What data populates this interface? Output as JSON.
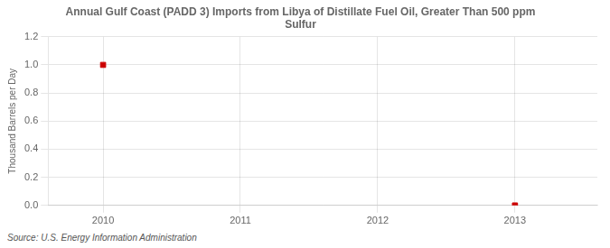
{
  "chart_data": {
    "type": "scatter",
    "title": "Annual Gulf Coast (PADD 3) Imports from Libya of Distillate Fuel Oil, Greater Than 500 ppm\nSulfur",
    "ylabel": "Thousand Barrels per Day",
    "annotations": [
      "Source: U.S. Energy Information Administration"
    ],
    "x": [
      2010,
      2013
    ],
    "values": [
      1.0,
      0.0
    ],
    "color": "#cc0000",
    "marker": "square",
    "xlim": [
      2009.6,
      2013.6
    ],
    "xticks": [
      2010,
      2011,
      2012,
      2013
    ],
    "ylim": [
      0.0,
      1.2
    ],
    "yticks": [
      {
        "value": 0.0,
        "label": "0.0"
      },
      0.2,
      0.4,
      0.6,
      0.8,
      {
        "value": 1.0,
        "label": "1.0"
      },
      1.2
    ],
    "grid": true
  }
}
